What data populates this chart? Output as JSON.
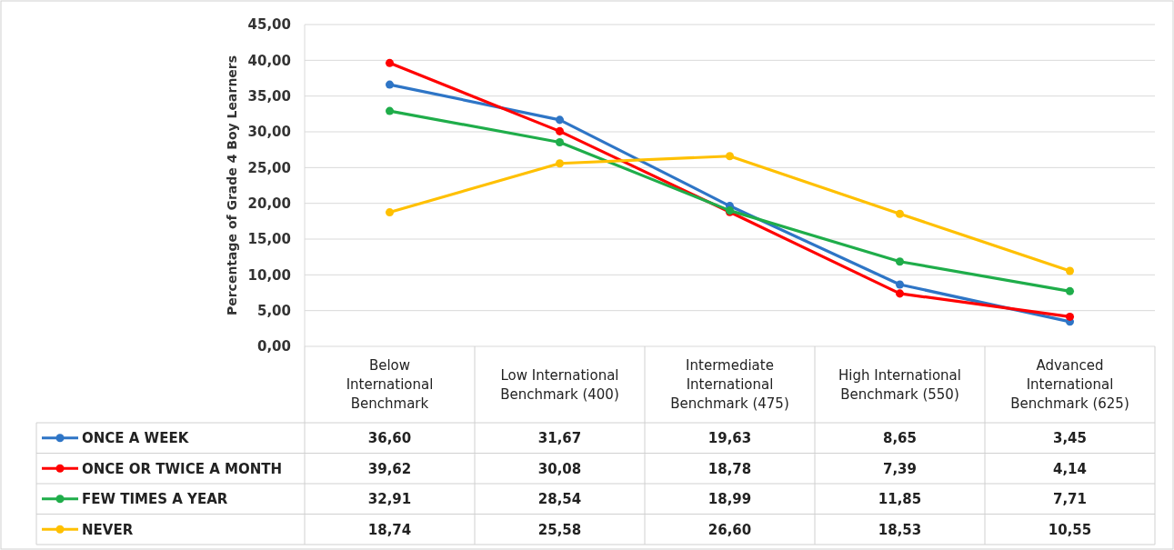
{
  "chart_data": {
    "type": "line",
    "ylabel": "Percentage of Grade 4 Boy Learners",
    "categories": [
      "Below International Benchmark",
      "Low International Benchmark (400)",
      "Intermediate International Benchmark (475)",
      "High International Benchmark (550)",
      "Advanced International Benchmark (625)"
    ],
    "series": [
      {
        "name": "ONCE A WEEK",
        "color": "#2e75c6",
        "values": [
          36.6,
          31.67,
          19.63,
          8.65,
          3.45
        ],
        "value_labels": [
          "36,60",
          "31,67",
          "19,63",
          "8,65",
          "3,45"
        ]
      },
      {
        "name": "ONCE OR TWICE A MONTH",
        "color": "#ff0000",
        "values": [
          39.62,
          30.08,
          18.78,
          7.39,
          4.14
        ],
        "value_labels": [
          "39,62",
          "30,08",
          "18,78",
          "7,39",
          "4,14"
        ]
      },
      {
        "name": "FEW TIMES A YEAR",
        "color": "#1fad4a",
        "values": [
          32.91,
          28.54,
          18.99,
          11.85,
          7.71
        ],
        "value_labels": [
          "32,91",
          "28,54",
          "18,99",
          "11,85",
          "7,71"
        ]
      },
      {
        "name": "NEVER",
        "color": "#ffc000",
        "values": [
          18.74,
          25.58,
          26.6,
          18.53,
          10.55
        ],
        "value_labels": [
          "18,74",
          "25,58",
          "26,60",
          "18,53",
          "10,55"
        ]
      }
    ],
    "ylim": [
      0,
      45
    ],
    "yticks": [
      {
        "value": 0,
        "label": "0,00"
      },
      {
        "value": 5,
        "label": "5,00"
      },
      {
        "value": 10,
        "label": "10,00"
      },
      {
        "value": 15,
        "label": "15,00"
      },
      {
        "value": 20,
        "label": "20,00"
      },
      {
        "value": 25,
        "label": "25,00"
      },
      {
        "value": 30,
        "label": "30,00"
      },
      {
        "value": 35,
        "label": "35,00"
      },
      {
        "value": 40,
        "label": "40,00"
      },
      {
        "value": 45,
        "label": "45,00"
      }
    ],
    "grid": "y",
    "legend": "bottom",
    "marker": "circle",
    "line_style": "solid"
  }
}
